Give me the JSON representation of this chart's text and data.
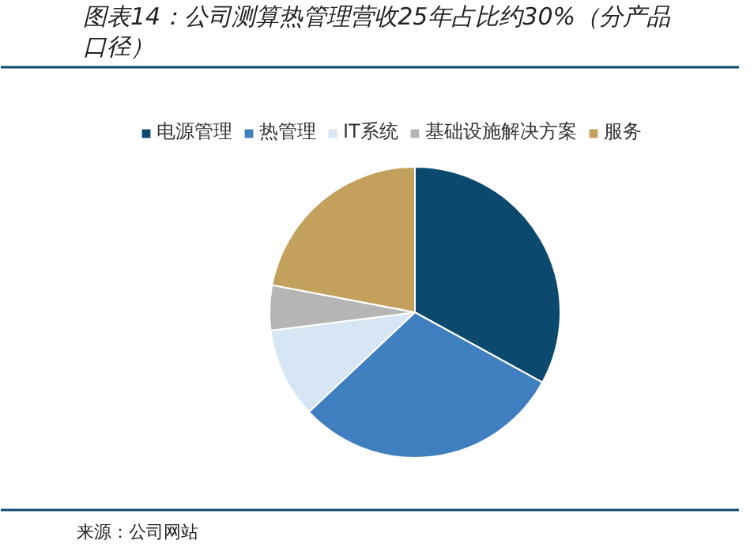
{
  "chart_data": {
    "type": "pie",
    "title": "图表14：公司测算热管理营收25年占比约30%（分产品口径）",
    "categories": [
      "电源管理",
      "热管理",
      "IT系统",
      "基础设施解决方案",
      "服务"
    ],
    "values": [
      33,
      30,
      10,
      5,
      22
    ],
    "colors": [
      "#0b4a6e",
      "#3f7fbf",
      "#d6e6f4",
      "#b5b5b5",
      "#c2a15d"
    ],
    "legend": "top",
    "annotations": [
      "来源：公司网站"
    ]
  }
}
